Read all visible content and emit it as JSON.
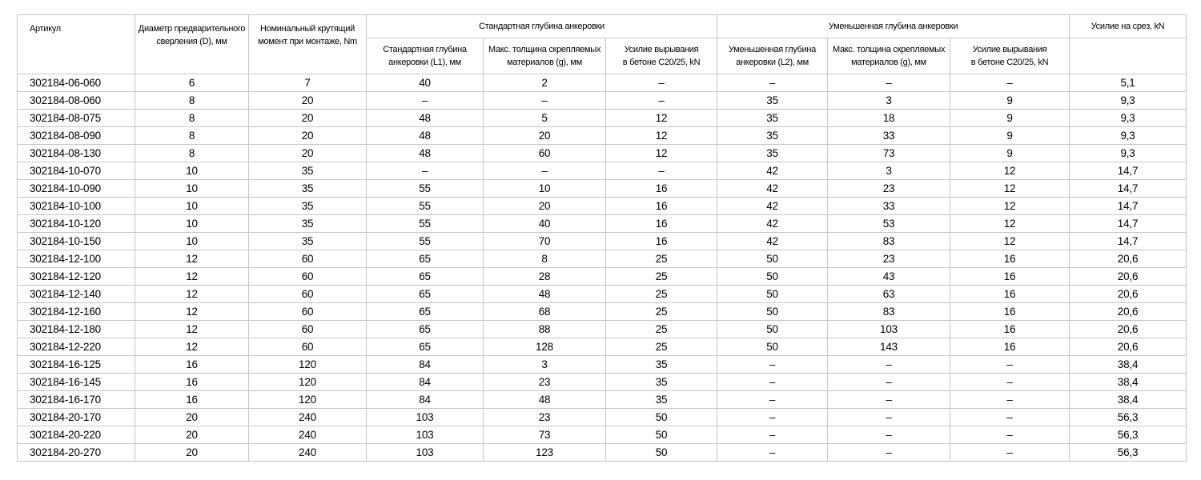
{
  "page_background": "#ffffff",
  "table": {
    "border_color": "#c6c6c6",
    "text_color": "#000000",
    "headers": {
      "article": "Артикул",
      "drill_diameter": "Диаметр предварительного\nсверления (D), мм",
      "torque": "Номинальный крутящий\nмомент при монтаже, Nm",
      "group_standard": "Стандартная глубина анкеровки",
      "group_reduced": "Уменьшенная глубина анкеровки",
      "std_depth": "Стандартная глубина\nанкеровки (L1), мм",
      "std_thickness": "Макс. толщина скрепляемых\nматериалов (g), мм",
      "std_pullout": "Усилие вырывания\nв бетоне C20/25, kN",
      "red_depth": "Уменьшенная глубина\nанкеровки (L2), мм",
      "red_thickness": "Макс. толщина скрепляемых\nматериалов (g), мм",
      "red_pullout": "Усилие вырывания\nв бетоне C20/25, kN",
      "shear": "Усилие на срез, kN"
    },
    "rows": [
      [
        "302184-06-060",
        "6",
        "7",
        "40",
        "2",
        "–",
        "–",
        "–",
        "–",
        "5,1"
      ],
      [
        "302184-08-060",
        "8",
        "20",
        "–",
        "–",
        "–",
        "35",
        "3",
        "9",
        "9,3"
      ],
      [
        "302184-08-075",
        "8",
        "20",
        "48",
        "5",
        "12",
        "35",
        "18",
        "9",
        "9,3"
      ],
      [
        "302184-08-090",
        "8",
        "20",
        "48",
        "20",
        "12",
        "35",
        "33",
        "9",
        "9,3"
      ],
      [
        "302184-08-130",
        "8",
        "20",
        "48",
        "60",
        "12",
        "35",
        "73",
        "9",
        "9,3"
      ],
      [
        "302184-10-070",
        "10",
        "35",
        "–",
        "–",
        "–",
        "42",
        "3",
        "12",
        "14,7"
      ],
      [
        "302184-10-090",
        "10",
        "35",
        "55",
        "10",
        "16",
        "42",
        "23",
        "12",
        "14,7"
      ],
      [
        "302184-10-100",
        "10",
        "35",
        "55",
        "20",
        "16",
        "42",
        "33",
        "12",
        "14,7"
      ],
      [
        "302184-10-120",
        "10",
        "35",
        "55",
        "40",
        "16",
        "42",
        "53",
        "12",
        "14,7"
      ],
      [
        "302184-10-150",
        "10",
        "35",
        "55",
        "70",
        "16",
        "42",
        "83",
        "12",
        "14,7"
      ],
      [
        "302184-12-100",
        "12",
        "60",
        "65",
        "8",
        "25",
        "50",
        "23",
        "16",
        "20,6"
      ],
      [
        "302184-12-120",
        "12",
        "60",
        "65",
        "28",
        "25",
        "50",
        "43",
        "16",
        "20,6"
      ],
      [
        "302184-12-140",
        "12",
        "60",
        "65",
        "48",
        "25",
        "50",
        "63",
        "16",
        "20,6"
      ],
      [
        "302184-12-160",
        "12",
        "60",
        "65",
        "68",
        "25",
        "50",
        "83",
        "16",
        "20,6"
      ],
      [
        "302184-12-180",
        "12",
        "60",
        "65",
        "88",
        "25",
        "50",
        "103",
        "16",
        "20,6"
      ],
      [
        "302184-12-220",
        "12",
        "60",
        "65",
        "128",
        "25",
        "50",
        "143",
        "16",
        "20,6"
      ],
      [
        "302184-16-125",
        "16",
        "120",
        "84",
        "3",
        "35",
        "–",
        "–",
        "–",
        "38,4"
      ],
      [
        "302184-16-145",
        "16",
        "120",
        "84",
        "23",
        "35",
        "–",
        "–",
        "–",
        "38,4"
      ],
      [
        "302184-16-170",
        "16",
        "120",
        "84",
        "48",
        "35",
        "–",
        "–",
        "–",
        "38,4"
      ],
      [
        "302184-20-170",
        "20",
        "240",
        "103",
        "23",
        "50",
        "–",
        "–",
        "–",
        "56,3"
      ],
      [
        "302184-20-220",
        "20",
        "240",
        "103",
        "73",
        "50",
        "–",
        "–",
        "–",
        "56,3"
      ],
      [
        "302184-20-270",
        "20",
        "240",
        "103",
        "123",
        "50",
        "–",
        "–",
        "–",
        "56,3"
      ]
    ]
  }
}
